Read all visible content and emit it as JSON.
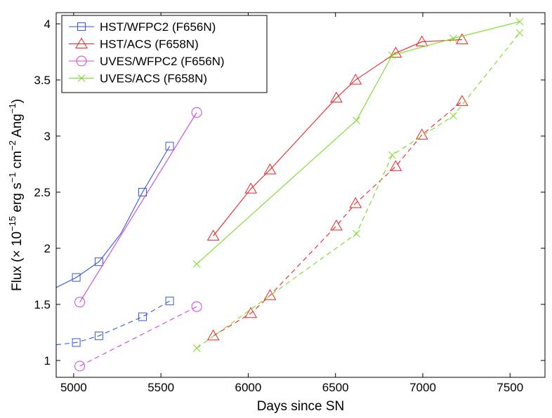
{
  "chart_data": {
    "type": "line",
    "xlabel": "Days since SN",
    "ylabel": "Flux (× 10",
    "ylabel_exp1": "−15",
    "ylabel_unit1": " erg s",
    "ylabel_exp2": "−1",
    "ylabel_unit2": " cm",
    "ylabel_exp3": "−2",
    "ylabel_unit3": " Ang",
    "ylabel_exp4": "−1",
    "ylabel_close": ")",
    "xlim": [
      4900,
      7700
    ],
    "ylim": [
      0.85,
      4.1
    ],
    "xticks": [
      5000,
      5500,
      6000,
      6500,
      7000,
      7500
    ],
    "yticks": [
      1,
      1.5,
      2,
      2.5,
      3,
      3.5,
      4
    ],
    "legend_position": "top-left",
    "series": [
      {
        "name": "HST/WFPC2 (F656N)",
        "color": "#3355dd",
        "marker": "square",
        "solid": {
          "points": [
            [
              5015,
              1.74
            ],
            [
              5145,
              1.88
            ],
            [
              5395,
              2.5
            ],
            [
              5550,
              2.91
            ]
          ],
          "fit": [
            [
              4900,
              1.65
            ],
            [
              5015,
              1.74
            ],
            [
              5145,
              1.88
            ],
            [
              5270,
              2.13
            ],
            [
              5395,
              2.5
            ],
            [
              5550,
              2.91
            ]
          ]
        },
        "dashed": {
          "points": [
            [
              5015,
              1.16
            ],
            [
              5145,
              1.22
            ],
            [
              5395,
              1.39
            ],
            [
              5550,
              1.53
            ]
          ],
          "fit": [
            [
              4900,
              1.14
            ],
            [
              5015,
              1.16
            ],
            [
              5145,
              1.22
            ],
            [
              5395,
              1.39
            ],
            [
              5550,
              1.53
            ]
          ]
        }
      },
      {
        "name": "HST/ACS (F658N)",
        "color": "#ee2222",
        "marker": "triangle",
        "solid": {
          "points": [
            [
              5800,
              2.11
            ],
            [
              6015,
              2.53
            ],
            [
              6125,
              2.7
            ],
            [
              6505,
              3.34
            ],
            [
              6615,
              3.5
            ],
            [
              6845,
              3.74
            ],
            [
              6995,
              3.84
            ],
            [
              7225,
              3.86
            ]
          ],
          "fit": [
            [
              5800,
              2.11
            ],
            [
              6015,
              2.53
            ],
            [
              6125,
              2.7
            ],
            [
              6505,
              3.34
            ],
            [
              6615,
              3.5
            ],
            [
              6845,
              3.74
            ],
            [
              6995,
              3.84
            ],
            [
              7225,
              3.86
            ]
          ]
        },
        "dashed": {
          "points": [
            [
              5800,
              1.22
            ],
            [
              6015,
              1.42
            ],
            [
              6125,
              1.58
            ],
            [
              6505,
              2.2
            ],
            [
              6615,
              2.4
            ],
            [
              6845,
              2.73
            ],
            [
              6995,
              3.01
            ],
            [
              7225,
              3.31
            ]
          ],
          "fit": [
            [
              5800,
              1.22
            ],
            [
              6015,
              1.42
            ],
            [
              6125,
              1.58
            ],
            [
              6505,
              2.2
            ],
            [
              6615,
              2.4
            ],
            [
              6845,
              2.73
            ],
            [
              6995,
              3.01
            ],
            [
              7225,
              3.31
            ]
          ]
        }
      },
      {
        "name": "UVES/WFPC2 (F656N)",
        "color": "#cc44dd",
        "marker": "circle",
        "solid": {
          "points": [
            [
              5035,
              1.52
            ],
            [
              5705,
              3.21
            ]
          ],
          "fit": [
            [
              5035,
              1.52
            ],
            [
              5705,
              3.21
            ]
          ]
        },
        "dashed": {
          "points": [
            [
              5035,
              0.95
            ],
            [
              5705,
              1.48
            ]
          ],
          "fit": [
            [
              5035,
              0.95
            ],
            [
              5705,
              1.48
            ]
          ]
        }
      },
      {
        "name": "UVES/ACS (F658N)",
        "color": "#77dd22",
        "marker": "x",
        "solid": {
          "points": [
            [
              5705,
              1.86
            ],
            [
              6620,
              3.14
            ],
            [
              6825,
              3.72
            ],
            [
              7175,
              3.87
            ],
            [
              7555,
              4.02
            ]
          ],
          "fit": [
            [
              5705,
              1.86
            ],
            [
              6620,
              3.14
            ],
            [
              6825,
              3.72
            ],
            [
              7175,
              3.87
            ],
            [
              7555,
              4.02
            ]
          ]
        },
        "dashed": {
          "points": [
            [
              5705,
              1.11
            ],
            [
              6620,
              2.13
            ],
            [
              6825,
              2.83
            ],
            [
              7175,
              3.18
            ],
            [
              7555,
              3.92
            ]
          ],
          "fit": [
            [
              5705,
              1.11
            ],
            [
              6620,
              2.13
            ],
            [
              6825,
              2.83
            ],
            [
              7175,
              3.18
            ],
            [
              7555,
              3.92
            ]
          ]
        }
      }
    ]
  }
}
